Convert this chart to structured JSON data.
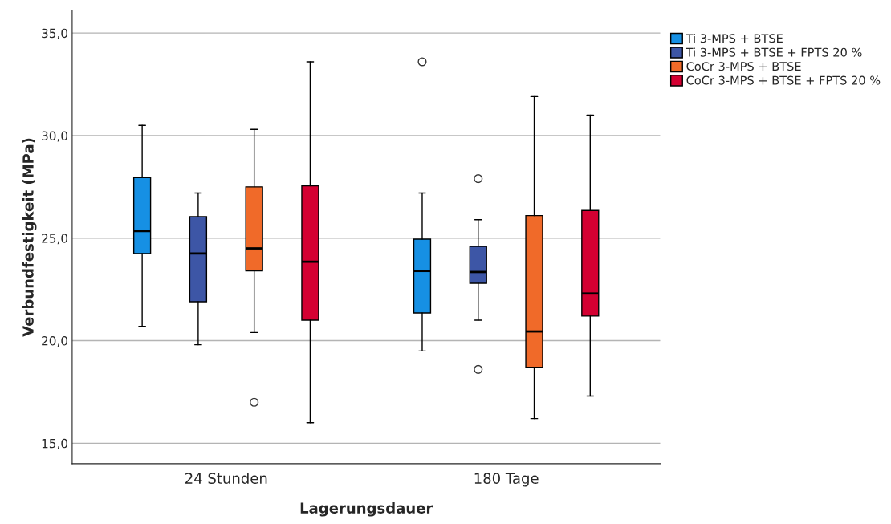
{
  "chart_data": {
    "type": "box",
    "xlabel": "Lagerungsdauer",
    "ylabel": "Verbundfestigkeit (MPa)",
    "categories": [
      "24 Stunden",
      "180 Tage"
    ],
    "series": [
      {
        "name": "Ti 3-MPS + BTSE",
        "color": "#1690e4",
        "boxes": [
          {
            "low": 20.7,
            "q1": 24.25,
            "median": 25.35,
            "q3": 27.95,
            "high": 30.5
          },
          {
            "low": 19.5,
            "q1": 21.35,
            "median": 23.4,
            "q3": 24.95,
            "high": 27.2,
            "outliers": [
              33.6
            ]
          }
        ]
      },
      {
        "name": "Ti 3-MPS + BTSE + FPTS 20 %",
        "color": "#3d56a6",
        "boxes": [
          {
            "low": 19.8,
            "q1": 21.9,
            "median": 24.25,
            "q3": 26.05,
            "high": 27.2
          },
          {
            "low": 21.0,
            "q1": 22.8,
            "median": 23.35,
            "q3": 24.6,
            "high": 25.9,
            "outliers": [
              27.9,
              18.6
            ]
          }
        ]
      },
      {
        "name": "CoCr 3-MPS + BTSE",
        "color": "#f06a29",
        "boxes": [
          {
            "low": 20.4,
            "q1": 23.4,
            "median": 24.5,
            "q3": 27.5,
            "high": 30.3,
            "outliers": [
              17.0
            ]
          },
          {
            "low": 16.2,
            "q1": 18.7,
            "median": 20.45,
            "q3": 26.1,
            "high": 31.9
          }
        ]
      },
      {
        "name": "CoCr 3-MPS + BTSE + FPTS 20 %",
        "color": "#d40032",
        "boxes": [
          {
            "low": 16.0,
            "q1": 21.0,
            "median": 23.85,
            "q3": 27.55,
            "high": 33.6
          },
          {
            "low": 17.3,
            "q1": 21.2,
            "median": 22.3,
            "q3": 26.35,
            "high": 31.0
          }
        ]
      }
    ],
    "ylim": [
      14.0,
      36.1
    ],
    "yticks": [
      {
        "value": 15,
        "label": "15,0"
      },
      {
        "value": 20,
        "label": "20,0"
      },
      {
        "value": 25,
        "label": "25,0"
      },
      {
        "value": 30,
        "label": "30,0"
      },
      {
        "value": 35,
        "label": "35,0"
      }
    ],
    "grid": "y",
    "legend": "top right"
  }
}
